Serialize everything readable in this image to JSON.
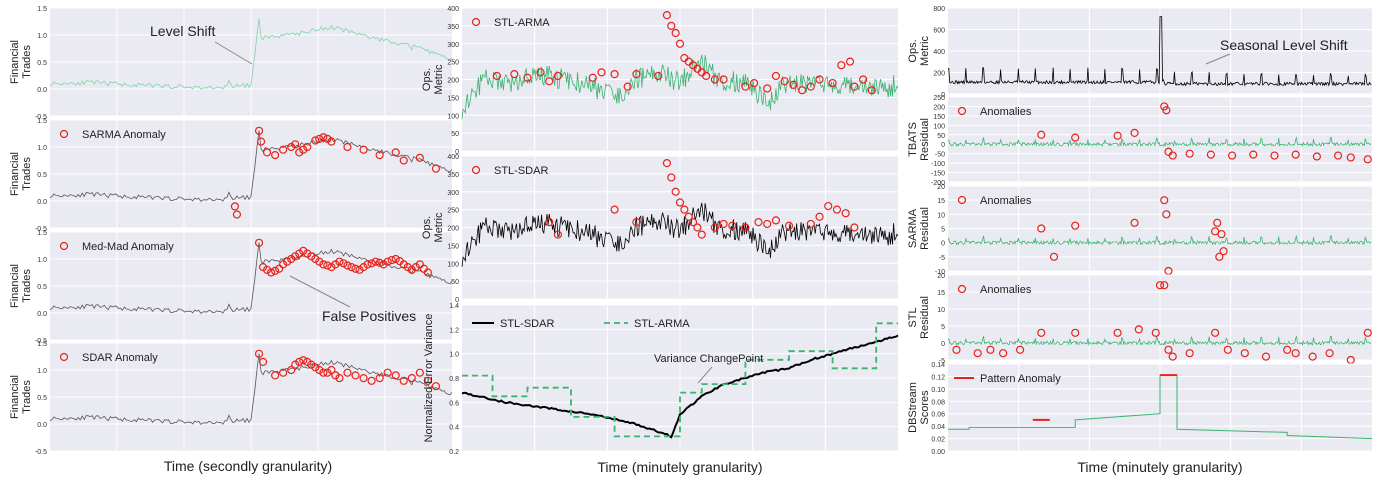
{
  "colors": {
    "green": "#3cb371",
    "green_light": "#7fd4a8",
    "black": "#000000",
    "gray": "#555555",
    "red": "#e8221b",
    "bg": "#eaeaf2"
  },
  "chart_data": [
    {
      "id": "ft1",
      "type": "line",
      "ylabel": "Financial Trades",
      "ylim": [
        -0.5,
        1.5
      ],
      "yticks": [
        "1.5",
        "1.0",
        "0.5",
        "0.0",
        "-0.5"
      ],
      "line_color": "light-green",
      "annotations": [
        {
          "text": "Level Shift"
        }
      ],
      "series": [
        {
          "x": [
            0,
            10,
            25,
            40,
            50,
            52,
            52.5,
            60,
            70,
            80,
            90,
            100
          ],
          "y": [
            0.1,
            0.12,
            0.06,
            0.02,
            0.07,
            1.3,
            0.95,
            1.0,
            1.15,
            0.95,
            0.8,
            0.55
          ]
        }
      ]
    },
    {
      "id": "ft2",
      "type": "line+scatter",
      "ylabel": "Financial Trades",
      "ylim": [
        -0.5,
        1.5
      ],
      "yticks": [
        "1.5",
        "1.0",
        "0.5",
        "0.0",
        "-0.5"
      ],
      "legend": "SARMA Anomaly",
      "series": [
        {
          "x": [
            0,
            10,
            25,
            40,
            50,
            52,
            52.5,
            60,
            70,
            80,
            90,
            100
          ],
          "y": [
            0.1,
            0.12,
            0.06,
            0.02,
            0.07,
            1.3,
            0.95,
            1.0,
            1.15,
            0.95,
            0.8,
            0.55
          ]
        }
      ],
      "anomalies": {
        "x": [
          46,
          46.5,
          52,
          52.5,
          54,
          56,
          58,
          60,
          61,
          62,
          63,
          64,
          66,
          67,
          68,
          69,
          70,
          74,
          78,
          82,
          86,
          88,
          92,
          96
        ],
        "y": [
          -0.1,
          -0.25,
          1.3,
          1.1,
          0.9,
          0.85,
          0.95,
          1.0,
          1.05,
          0.9,
          0.95,
          1.0,
          1.12,
          1.15,
          1.18,
          1.15,
          1.1,
          1.0,
          0.95,
          0.85,
          0.9,
          0.75,
          0.8,
          0.6
        ]
      }
    },
    {
      "id": "ft3",
      "type": "line+scatter",
      "ylabel": "Financial Trades",
      "ylim": [
        -0.5,
        1.5
      ],
      "yticks": [
        "1.5",
        "1.0",
        "0.5",
        "0.0",
        "-0.5"
      ],
      "legend": "Med-Mad Anomaly",
      "annotations": [
        {
          "text": "False Positives"
        }
      ],
      "series": [
        {
          "x": [
            0,
            10,
            25,
            40,
            50,
            52,
            52.5,
            60,
            70,
            80,
            90,
            100
          ],
          "y": [
            0.1,
            0.12,
            0.06,
            0.02,
            0.07,
            1.3,
            0.95,
            1.0,
            1.15,
            0.95,
            0.8,
            0.55
          ]
        }
      ],
      "anomalies": {
        "x": [
          52,
          53,
          54,
          55,
          56,
          57,
          58,
          59,
          60,
          61,
          62,
          63,
          64,
          65,
          66,
          67,
          68,
          69,
          70,
          71,
          72,
          73,
          74,
          75,
          76,
          77,
          78,
          79,
          80,
          81,
          82,
          83,
          84,
          85,
          86,
          87,
          88,
          89,
          90,
          91,
          92,
          93,
          94
        ],
        "y": [
          1.3,
          0.85,
          0.8,
          0.75,
          0.78,
          0.82,
          0.9,
          0.95,
          1.0,
          1.05,
          1.1,
          1.15,
          1.1,
          1.05,
          1.0,
          0.95,
          0.9,
          0.88,
          0.85,
          0.9,
          0.95,
          0.92,
          0.88,
          0.85,
          0.82,
          0.8,
          0.85,
          0.9,
          0.92,
          0.95,
          0.93,
          0.9,
          0.95,
          0.98,
          1.0,
          0.96,
          0.9,
          0.85,
          0.8,
          0.85,
          0.9,
          0.82,
          0.75
        ]
      }
    },
    {
      "id": "ft4",
      "type": "line+scatter",
      "ylabel": "Financial Trades",
      "ylim": [
        -0.5,
        1.5
      ],
      "yticks": [
        "1.5",
        "1.0",
        "0.5",
        "0.0",
        "-0.5"
      ],
      "legend": "SDAR Anomaly",
      "series": [
        {
          "x": [
            0,
            10,
            25,
            40,
            50,
            52,
            52.5,
            60,
            70,
            80,
            90,
            100
          ],
          "y": [
            0.1,
            0.12,
            0.06,
            0.02,
            0.07,
            1.3,
            0.95,
            1.0,
            1.15,
            0.95,
            0.8,
            0.55
          ]
        }
      ],
      "anomalies": {
        "x": [
          52,
          53,
          56,
          58,
          60,
          61,
          62,
          63,
          64,
          65,
          66,
          67,
          68,
          69,
          70,
          71,
          72,
          74,
          76,
          78,
          80,
          82,
          84,
          86,
          88,
          90,
          92,
          94,
          96
        ],
        "y": [
          1.3,
          1.15,
          0.9,
          0.95,
          1.0,
          1.1,
          1.15,
          1.18,
          1.15,
          1.1,
          1.05,
          1.0,
          0.95,
          0.95,
          1.0,
          0.9,
          0.85,
          0.95,
          0.9,
          0.85,
          0.8,
          0.85,
          0.95,
          0.9,
          0.8,
          0.85,
          0.95,
          0.8,
          0.7
        ]
      }
    },
    {
      "id": "ops1",
      "type": "line+scatter",
      "ylabel": "Ops. Metric",
      "ylim": [
        0,
        400
      ],
      "yticks": [
        "400",
        "350",
        "300",
        "250",
        "200",
        "150",
        "100",
        "50",
        "0"
      ],
      "legend": "STL-ARMA",
      "series": [
        {
          "x": [
            0,
            5,
            10,
            20,
            30,
            35,
            40,
            45,
            50,
            55,
            60,
            65,
            70,
            75,
            80,
            90,
            100
          ],
          "y": [
            120,
            200,
            190,
            210,
            180,
            150,
            200,
            220,
            190,
            250,
            180,
            200,
            130,
            200,
            180,
            190,
            170
          ]
        }
      ],
      "anomalies": {
        "x": [
          8,
          12,
          15,
          18,
          20,
          22,
          30,
          32,
          35,
          38,
          40,
          45,
          47,
          48,
          49,
          50,
          51,
          52,
          53,
          54,
          55,
          56,
          58,
          60,
          65,
          67,
          70,
          72,
          74,
          76,
          78,
          80,
          82,
          85,
          87,
          89,
          90,
          92,
          94
        ],
        "y": [
          210,
          215,
          205,
          220,
          195,
          210,
          205,
          220,
          215,
          180,
          215,
          210,
          380,
          350,
          330,
          300,
          260,
          250,
          240,
          230,
          220,
          210,
          200,
          200,
          180,
          190,
          175,
          210,
          195,
          185,
          170,
          180,
          200,
          190,
          240,
          250,
          180,
          200,
          170
        ]
      }
    },
    {
      "id": "ops2",
      "type": "line+scatter",
      "ylabel": "Ops. Metric",
      "ylim": [
        0,
        400
      ],
      "yticks": [
        "400",
        "350",
        "300",
        "250",
        "200",
        "150",
        "100",
        "50",
        "0"
      ],
      "legend": "STL-SDAR",
      "series": [
        {
          "x": [
            0,
            5,
            10,
            20,
            30,
            35,
            40,
            45,
            50,
            55,
            60,
            65,
            70,
            75,
            80,
            90,
            100
          ],
          "y": [
            120,
            200,
            190,
            210,
            180,
            150,
            200,
            220,
            190,
            250,
            180,
            200,
            130,
            200,
            180,
            190,
            170
          ]
        }
      ],
      "anomalies": {
        "x": [
          20,
          22,
          35,
          40,
          47,
          48,
          49,
          50,
          51,
          52,
          53,
          54,
          55,
          58,
          60,
          62,
          65,
          68,
          70,
          72,
          75,
          80,
          82,
          84,
          86,
          88,
          90
        ],
        "y": [
          215,
          180,
          250,
          215,
          380,
          340,
          300,
          270,
          250,
          230,
          215,
          200,
          180,
          200,
          210,
          205,
          200,
          215,
          210,
          220,
          205,
          210,
          230,
          260,
          250,
          240,
          200
        ]
      }
    },
    {
      "id": "var",
      "type": "line",
      "ylabel": "Normalized Error Variance",
      "ylim": [
        0.2,
        1.4
      ],
      "yticks": [
        "1.4",
        "1.2",
        "1.0",
        "0.8",
        "0.6",
        "0.4",
        "0.2"
      ],
      "annotations": [
        {
          "text": "Variance ChangePoint"
        }
      ],
      "series": [
        {
          "name": "STL-SDAR",
          "x": [
            0,
            10,
            20,
            30,
            40,
            48,
            50,
            55,
            60,
            70,
            75,
            80,
            85,
            90,
            95,
            100
          ],
          "y": [
            0.68,
            0.6,
            0.55,
            0.5,
            0.42,
            0.32,
            0.5,
            0.65,
            0.75,
            0.85,
            0.88,
            0.95,
            1.0,
            1.05,
            1.1,
            1.15
          ]
        },
        {
          "name": "STL-ARMA",
          "x": [
            0,
            7,
            7,
            15,
            15,
            25,
            25,
            35,
            35,
            50,
            50,
            55,
            55,
            65,
            65,
            75,
            75,
            85,
            85,
            95,
            95,
            100
          ],
          "y": [
            0.82,
            0.82,
            0.65,
            0.65,
            0.72,
            0.72,
            0.48,
            0.48,
            0.32,
            0.32,
            0.68,
            0.68,
            0.75,
            0.75,
            0.95,
            0.95,
            1.02,
            1.02,
            0.88,
            0.88,
            1.25,
            1.25
          ]
        }
      ]
    },
    {
      "id": "seas",
      "type": "line",
      "ylabel": "Ops. Metric",
      "ylim": [
        0,
        800
      ],
      "yticks": [
        "800",
        "600",
        "400",
        "200",
        "0"
      ],
      "annotations": [
        {
          "text": "Seasonal Level Shift"
        }
      ],
      "series": [
        {
          "x": [
            0,
            50,
            50.5,
            51,
            100
          ],
          "y": [
            120,
            120,
            720,
            180,
            100
          ]
        }
      ]
    },
    {
      "id": "tbats",
      "type": "line+scatter",
      "ylabel": "TBATS Residual",
      "ylim": [
        -200,
        250
      ],
      "yticks": [
        "250",
        "200",
        "150",
        "100",
        "50",
        "0",
        "-50",
        "-100",
        "-150",
        "-200"
      ],
      "legend": "Anomalies",
      "series": [
        {
          "x": [
            0,
            100
          ],
          "y": [
            0,
            0
          ]
        }
      ],
      "anomalies": {
        "x": [
          22,
          30,
          40,
          44,
          51,
          51.5,
          52,
          53,
          57,
          62,
          67,
          72,
          77,
          82,
          87,
          92,
          95,
          99
        ],
        "y": [
          50,
          35,
          45,
          60,
          200,
          180,
          -40,
          -60,
          -50,
          -55,
          -60,
          -55,
          -60,
          -55,
          -65,
          -60,
          -70,
          -80
        ]
      }
    },
    {
      "id": "sarma",
      "type": "line+scatter",
      "ylabel": "SARMA Residual",
      "ylim": [
        -10,
        20
      ],
      "yticks": [
        "20",
        "15",
        "10",
        "5",
        "0",
        "-5",
        "-10"
      ],
      "legend": "Anomalies",
      "series": [
        {
          "x": [
            0,
            100
          ],
          "y": [
            0,
            0
          ]
        }
      ],
      "anomalies": {
        "x": [
          22,
          25,
          30,
          44,
          51,
          51.5,
          52,
          63,
          63.5,
          64,
          64.5,
          65
        ],
        "y": [
          5,
          -5,
          6,
          7,
          15,
          10,
          -10,
          4,
          7,
          -5,
          3,
          -3
        ]
      }
    },
    {
      "id": "stl",
      "type": "line+scatter",
      "ylabel": "STL Residual",
      "ylim": [
        -5,
        20
      ],
      "yticks": [
        "20",
        "15",
        "10",
        "5",
        "0",
        "-5"
      ],
      "legend": "Anomalies",
      "series": [
        {
          "x": [
            0,
            100
          ],
          "y": [
            0,
            0
          ]
        }
      ],
      "anomalies": {
        "x": [
          2,
          7,
          10,
          13,
          17,
          22,
          30,
          40,
          45,
          49,
          50,
          51,
          52,
          53,
          57,
          63,
          66,
          70,
          75,
          80,
          82,
          86,
          90,
          95,
          99
        ],
        "y": [
          -2,
          -3,
          -2,
          -3,
          -2,
          3,
          3,
          3,
          4,
          3,
          17,
          17,
          -2,
          -4,
          -3,
          3,
          -2,
          -3,
          -4,
          -2,
          -3,
          -4,
          -3,
          -5,
          3
        ]
      }
    },
    {
      "id": "dbs",
      "type": "line",
      "ylabel": "DBStream Scores",
      "ylim": [
        0,
        0.14
      ],
      "yticks": [
        "0.14",
        "0.12",
        "0.10",
        "0.08",
        "0.06",
        "0.04",
        "0.02",
        "0.00"
      ],
      "legend": "Pattern Anomaly",
      "series": [
        {
          "x": [
            0,
            5,
            5,
            30,
            30,
            50,
            50,
            54,
            54,
            80,
            80,
            100
          ],
          "y": [
            0.035,
            0.035,
            0.038,
            0.038,
            0.05,
            0.06,
            0.122,
            0.122,
            0.035,
            0.03,
            0.025,
            0.02
          ]
        }
      ],
      "anomaly_segments": [
        {
          "x": [
            20,
            24
          ],
          "y": [
            0.05,
            0.05
          ]
        },
        {
          "x": [
            50,
            54
          ],
          "y": [
            0.122,
            0.122
          ]
        }
      ]
    }
  ],
  "xlabels": {
    "left": "Time (secondly granularity)",
    "mid": "Time (minutely granularity)",
    "right": "Time (minutely granularity)"
  }
}
